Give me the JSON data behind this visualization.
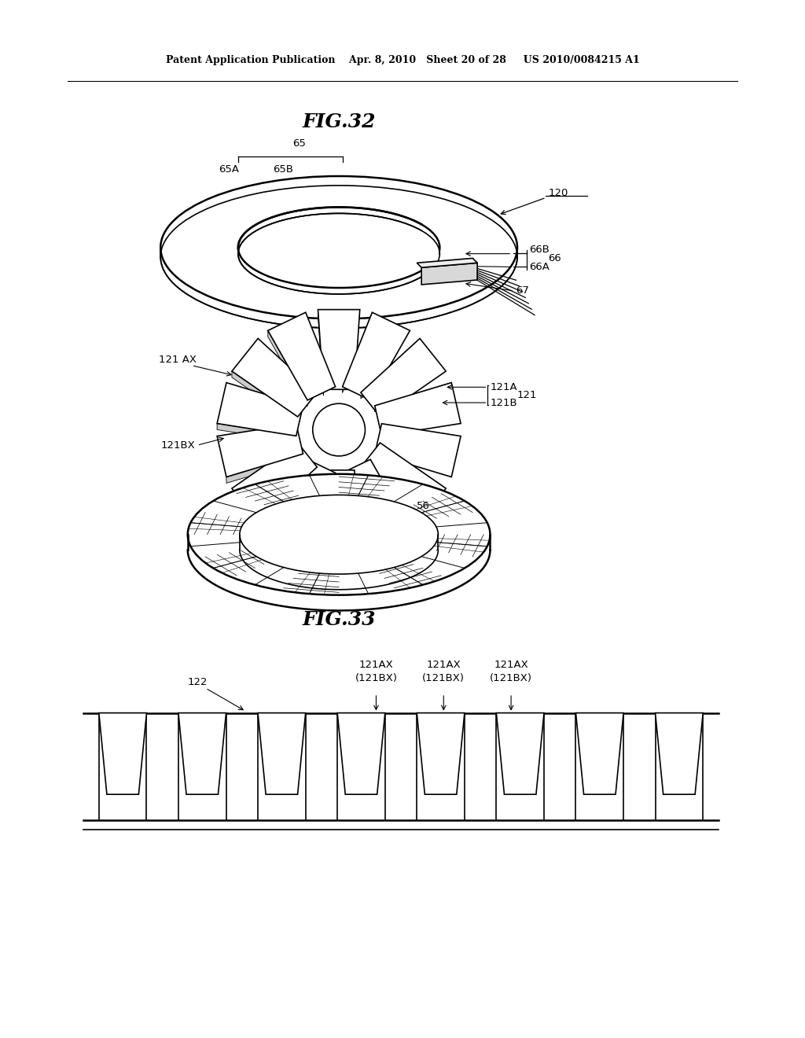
{
  "bg_color": "#ffffff",
  "line_color": "#000000",
  "header_text": "Patent Application Publication    Apr. 8, 2010   Sheet 20 of 28     US 2010/0084215 A1",
  "fig32_title": "FIG.32",
  "fig33_title": "FIG.33"
}
